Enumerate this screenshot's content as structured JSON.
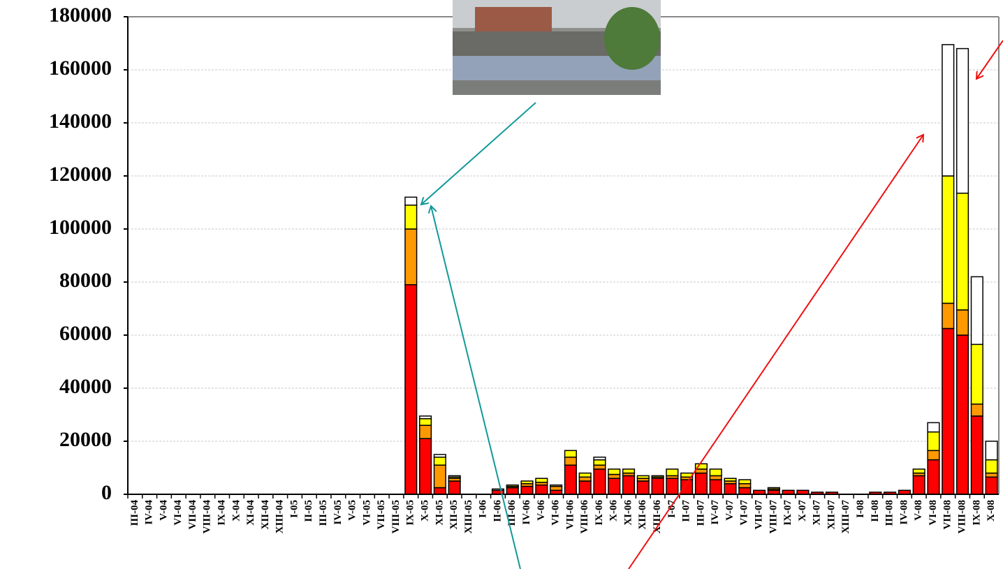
{
  "chart_data": {
    "type": "stacked_bar",
    "categories": [
      "III-04",
      "IV-04",
      "V-04",
      "VI-04",
      "VII-04",
      "VIII-04",
      "IX-04",
      "X-04",
      "XI-04",
      "XII-04",
      "XIII-04",
      "I-05",
      "II-05",
      "III-05",
      "IV-05",
      "V-05",
      "VI-05",
      "VII-05",
      "VIII-05",
      "IX-05",
      "X-05",
      "XI-05",
      "XII-05",
      "XIII-05",
      "I-06",
      "II-06",
      "III-06",
      "IV-06",
      "V-06",
      "VI-06",
      "VII-06",
      "VIII-06",
      "IX-06",
      "X-06",
      "XI-06",
      "XII-06",
      "XIII-06",
      "I-07",
      "II-07",
      "III-07",
      "IV-07",
      "V-07",
      "VI-07",
      "VII-07",
      "VIII-07",
      "IX-07",
      "X-07",
      "XI-07",
      "XII-07",
      "XIII-07",
      "I-08",
      "II-08",
      "III-08",
      "IV-08",
      "V-08",
      "VI-08",
      "VII-08",
      "VIII-08",
      "IX-08",
      "X-08"
    ],
    "series": [
      {
        "color": "#ff0000",
        "values": [
          0,
          0,
          0,
          0,
          0,
          0,
          0,
          0,
          0,
          0,
          0,
          0,
          0,
          0,
          0,
          0,
          0,
          0,
          0,
          79000,
          21000,
          2500,
          5000,
          0,
          0,
          1500,
          2500,
          3000,
          3500,
          1500,
          11000,
          5000,
          9500,
          6000,
          7000,
          5000,
          6000,
          6000,
          5500,
          8000,
          5500,
          4000,
          2500,
          1500,
          1500,
          1500,
          1500,
          800,
          800,
          0,
          0,
          800,
          800,
          1500,
          7000,
          13000,
          62500,
          60000,
          29500,
          6500
        ]
      },
      {
        "color": "#ff9900",
        "values": [
          0,
          0,
          0,
          0,
          0,
          0,
          0,
          0,
          0,
          0,
          0,
          0,
          0,
          0,
          0,
          0,
          0,
          0,
          0,
          21000,
          5000,
          8500,
          1000,
          0,
          0,
          0,
          500,
          1000,
          1000,
          1500,
          3000,
          1500,
          1500,
          1500,
          1000,
          1000,
          500,
          1000,
          1000,
          1500,
          1500,
          1000,
          1500,
          0,
          500,
          0,
          0,
          0,
          0,
          0,
          0,
          0,
          0,
          0,
          1000,
          3500,
          9500,
          9500,
          4500,
          1500
        ]
      },
      {
        "color": "#ffff00",
        "values": [
          0,
          0,
          0,
          0,
          0,
          0,
          0,
          0,
          0,
          0,
          0,
          0,
          0,
          0,
          0,
          0,
          0,
          0,
          0,
          9000,
          2500,
          3000,
          500,
          0,
          0,
          0,
          500,
          1000,
          1500,
          0,
          2500,
          1500,
          2000,
          2000,
          1500,
          1000,
          500,
          2500,
          1500,
          2000,
          2500,
          1000,
          1500,
          0,
          500,
          0,
          0,
          0,
          0,
          0,
          0,
          0,
          0,
          0,
          1500,
          7000,
          48000,
          44000,
          22500,
          5000
        ]
      },
      {
        "color": "#ffffff",
        "values": [
          0,
          0,
          0,
          0,
          0,
          0,
          0,
          0,
          0,
          0,
          0,
          0,
          0,
          0,
          0,
          0,
          0,
          0,
          0,
          3000,
          1000,
          1000,
          500,
          0,
          0,
          500,
          0,
          0,
          0,
          500,
          0,
          0,
          1000,
          0,
          0,
          0,
          0,
          0,
          0,
          0,
          0,
          0,
          0,
          0,
          0,
          0,
          0,
          0,
          0,
          0,
          0,
          0,
          0,
          0,
          0,
          3500,
          49500,
          54500,
          25500,
          7000
        ]
      }
    ],
    "ylim": [
      0,
      180000
    ],
    "yticks": [
      0,
      20000,
      40000,
      60000,
      80000,
      100000,
      120000,
      140000,
      160000,
      180000
    ],
    "grid": true
  }
}
